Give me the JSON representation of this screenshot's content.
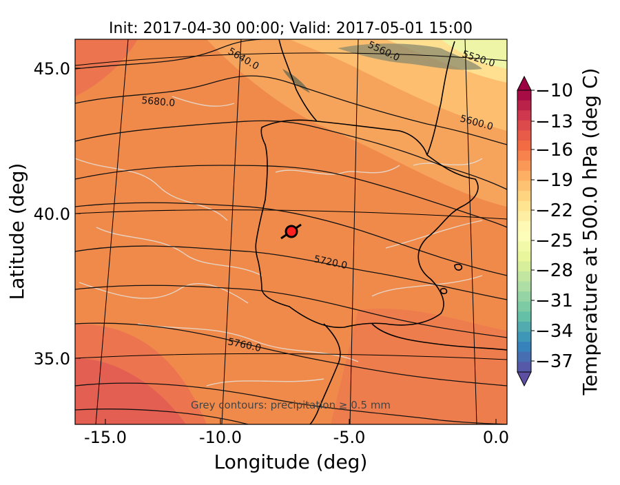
{
  "title": "Init: 2017-04-30 00:00; Valid: 2017-05-01 15:00",
  "axes": {
    "xlabel": "Longitude (deg)",
    "ylabel": "Latitude (deg)",
    "xticks": [
      "-15.0",
      "-10.0",
      "-5.0",
      "0.0"
    ],
    "yticks": [
      "45.0",
      "40.0",
      "35.0"
    ]
  },
  "colorbar": {
    "label": "Temperature at 500.0 hPa (deg C)",
    "ticks": [
      "−10",
      "−13",
      "−16",
      "−19",
      "−22",
      "−25",
      "−28",
      "−31",
      "−34",
      "−37"
    ],
    "range": [
      -38,
      -10
    ],
    "colormap": "Spectral_r"
  },
  "annotation": "Grey contours: precipitation ≥ 0.5 mm",
  "contour_labels": [
    "5520.0",
    "5560.0",
    "5600.0",
    "5640.0",
    "5680.0",
    "5720.0",
    "5760.0"
  ],
  "marker": {
    "lon": -7.6,
    "lat": 39.3,
    "color": "#ff2020"
  },
  "colors": {
    "warm": "#f08a4b",
    "hot": "#e05050",
    "cool": "#fdbe6f",
    "cold": "#eef5a6",
    "contour": "#111111",
    "precip": "#d8d8d8"
  }
}
